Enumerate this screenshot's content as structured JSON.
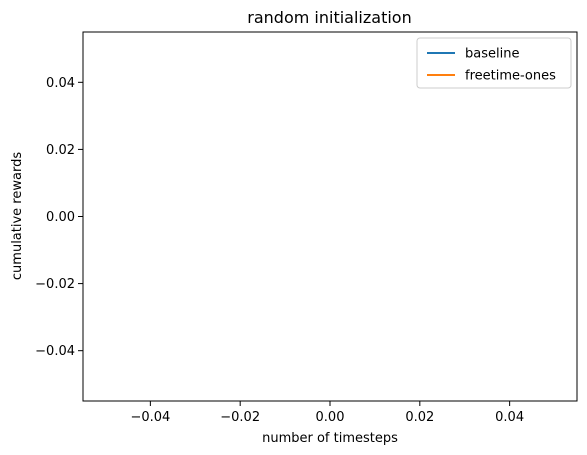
{
  "chart_data": {
    "type": "line",
    "title": "random initialization",
    "xlabel": "number of timesteps",
    "ylabel": "cumulative rewards",
    "xlim": [
      -0.055,
      0.055
    ],
    "ylim": [
      -0.055,
      0.055
    ],
    "xticks": [
      -0.04,
      -0.02,
      0.0,
      0.02,
      0.04
    ],
    "xtick_labels": [
      "−0.04",
      "−0.02",
      "0.00",
      "0.02",
      "0.04"
    ],
    "yticks": [
      -0.04,
      -0.02,
      0.0,
      0.02,
      0.04
    ],
    "ytick_labels": [
      "−0.04",
      "−0.02",
      "0.00",
      "0.02",
      "0.04"
    ],
    "grid": false,
    "legend_position": "top-right",
    "series": [
      {
        "name": "baseline",
        "color": "#1f77b4",
        "x": [],
        "y": []
      },
      {
        "name": "freetime-ones",
        "color": "#ff7f0e",
        "x": [],
        "y": []
      }
    ]
  }
}
